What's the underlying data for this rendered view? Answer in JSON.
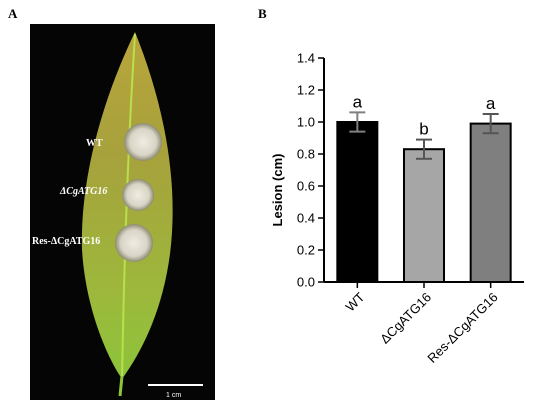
{
  "panels": {
    "a_label": "A",
    "b_label": "B"
  },
  "photo": {
    "strain_labels": [
      "WT",
      "ΔCgATG16",
      "Res-ΔCgATG16"
    ],
    "scale_bar_label": "1 cm",
    "background_color": "#050505",
    "leaf_color": "#9aa83a",
    "midrib_color": "#b7e04a",
    "lesion_color": "#e6e2d6"
  },
  "chart_data": {
    "type": "bar",
    "categories": [
      "WT",
      "ΔCgATG16",
      "Res-ΔCgATG16"
    ],
    "values": [
      1.0,
      0.83,
      0.99
    ],
    "errors": [
      0.06,
      0.06,
      0.06
    ],
    "significance": [
      "a",
      "b",
      "a"
    ],
    "bar_colors": [
      "#000000",
      "#a6a6a6",
      "#7f7f7f"
    ],
    "xlabel": "",
    "ylabel": "Lesion (cm)",
    "ylim": [
      0,
      1.4
    ],
    "yticks": [
      "0.0",
      "0.2",
      "0.4",
      "0.6",
      "0.8",
      "1.0",
      "1.2",
      "1.4"
    ],
    "grid": false,
    "legend": "none"
  }
}
